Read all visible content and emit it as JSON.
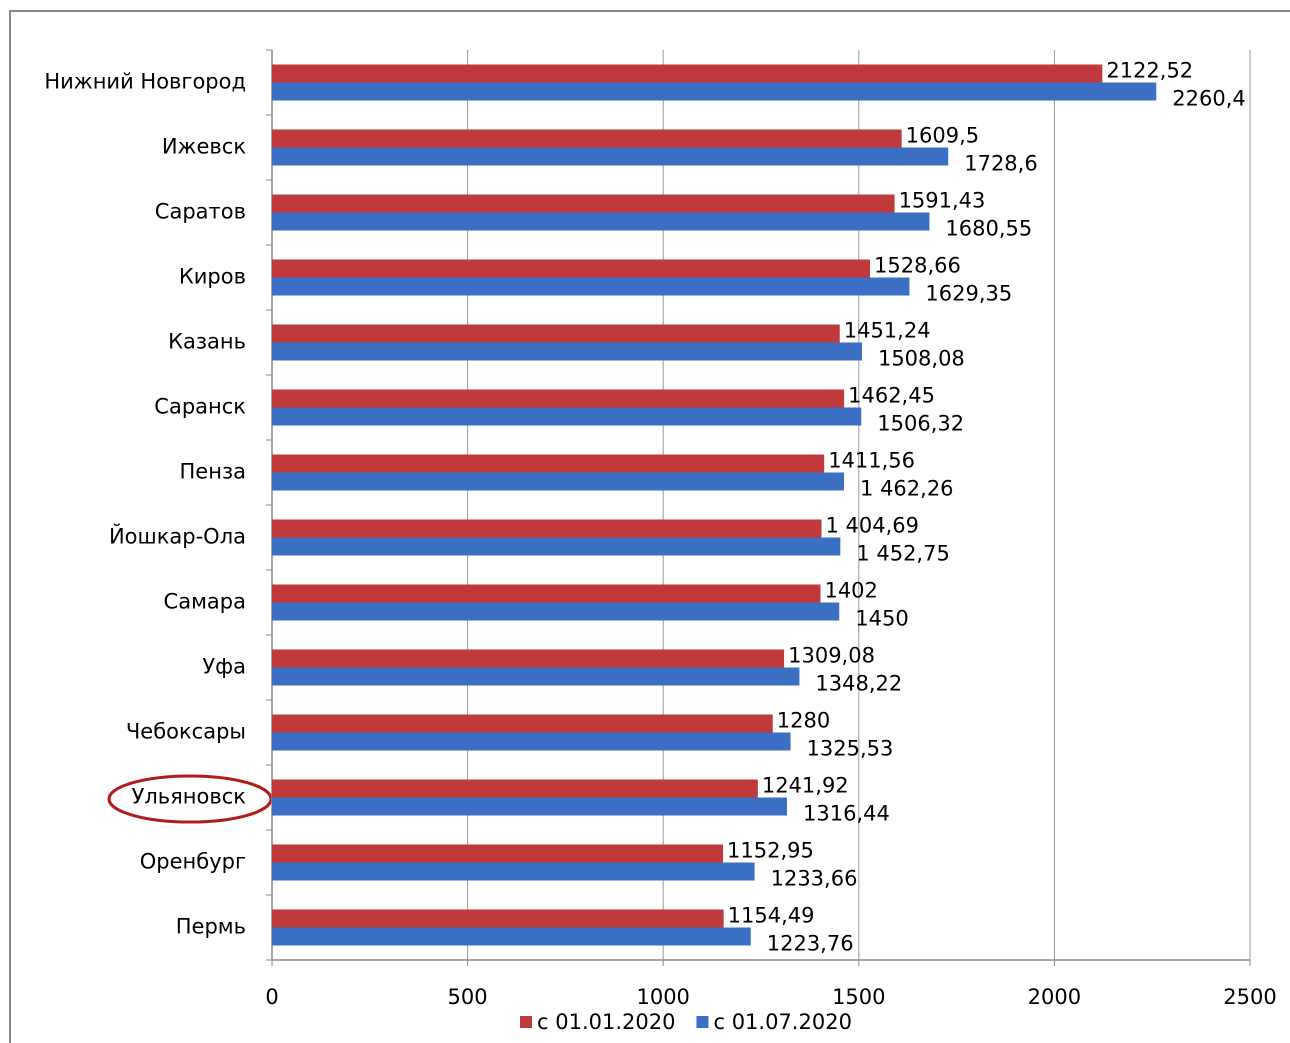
{
  "chart_data": {
    "type": "bar",
    "orientation": "horizontal",
    "categories": [
      "Нижний Новгород",
      "Ижевск",
      "Саратов",
      "Киров",
      "Казань",
      "Саранск",
      "Пенза",
      "Йошкар-Ола",
      "Самара",
      "Уфа",
      "Чебоксары",
      "Ульяновск",
      "Оренбург",
      "Пермь"
    ],
    "series": [
      {
        "name": "с 01.01.2020",
        "color": "#c0393b",
        "values": [
          2122.52,
          1609.5,
          1591.43,
          1528.66,
          1451.24,
          1462.45,
          1411.56,
          1404.69,
          1402,
          1309.08,
          1280,
          1241.92,
          1152.95,
          1154.49
        ],
        "value_labels": [
          "2122,52",
          "1609,5",
          "1591,43",
          "1528,66",
          "1451,24",
          "1462,45",
          "1411,56",
          "1 404,69",
          "1402",
          "1309,08",
          "1280",
          "1241,92",
          "1152,95",
          "1154,49"
        ]
      },
      {
        "name": "с 01.07.2020",
        "color": "#3b6fc3",
        "values": [
          2260.4,
          1728.6,
          1680.55,
          1629.35,
          1508.08,
          1506.32,
          1462.26,
          1452.75,
          1450,
          1348.22,
          1325.53,
          1316.44,
          1233.66,
          1223.76
        ],
        "value_labels": [
          "2260,4",
          "1728,6",
          "1680,55",
          "1629,35",
          "1508,08",
          "1506,32",
          "1 462,26",
          "1 452,75",
          "1450",
          "1348,22",
          "1325,53",
          "1316,44",
          "1233,66",
          "1223,76"
        ]
      }
    ],
    "xlim": [
      0,
      2500
    ],
    "xticks": [
      0,
      500,
      1000,
      1500,
      2000,
      2500
    ],
    "grid": true,
    "legend": "bottom"
  }
}
